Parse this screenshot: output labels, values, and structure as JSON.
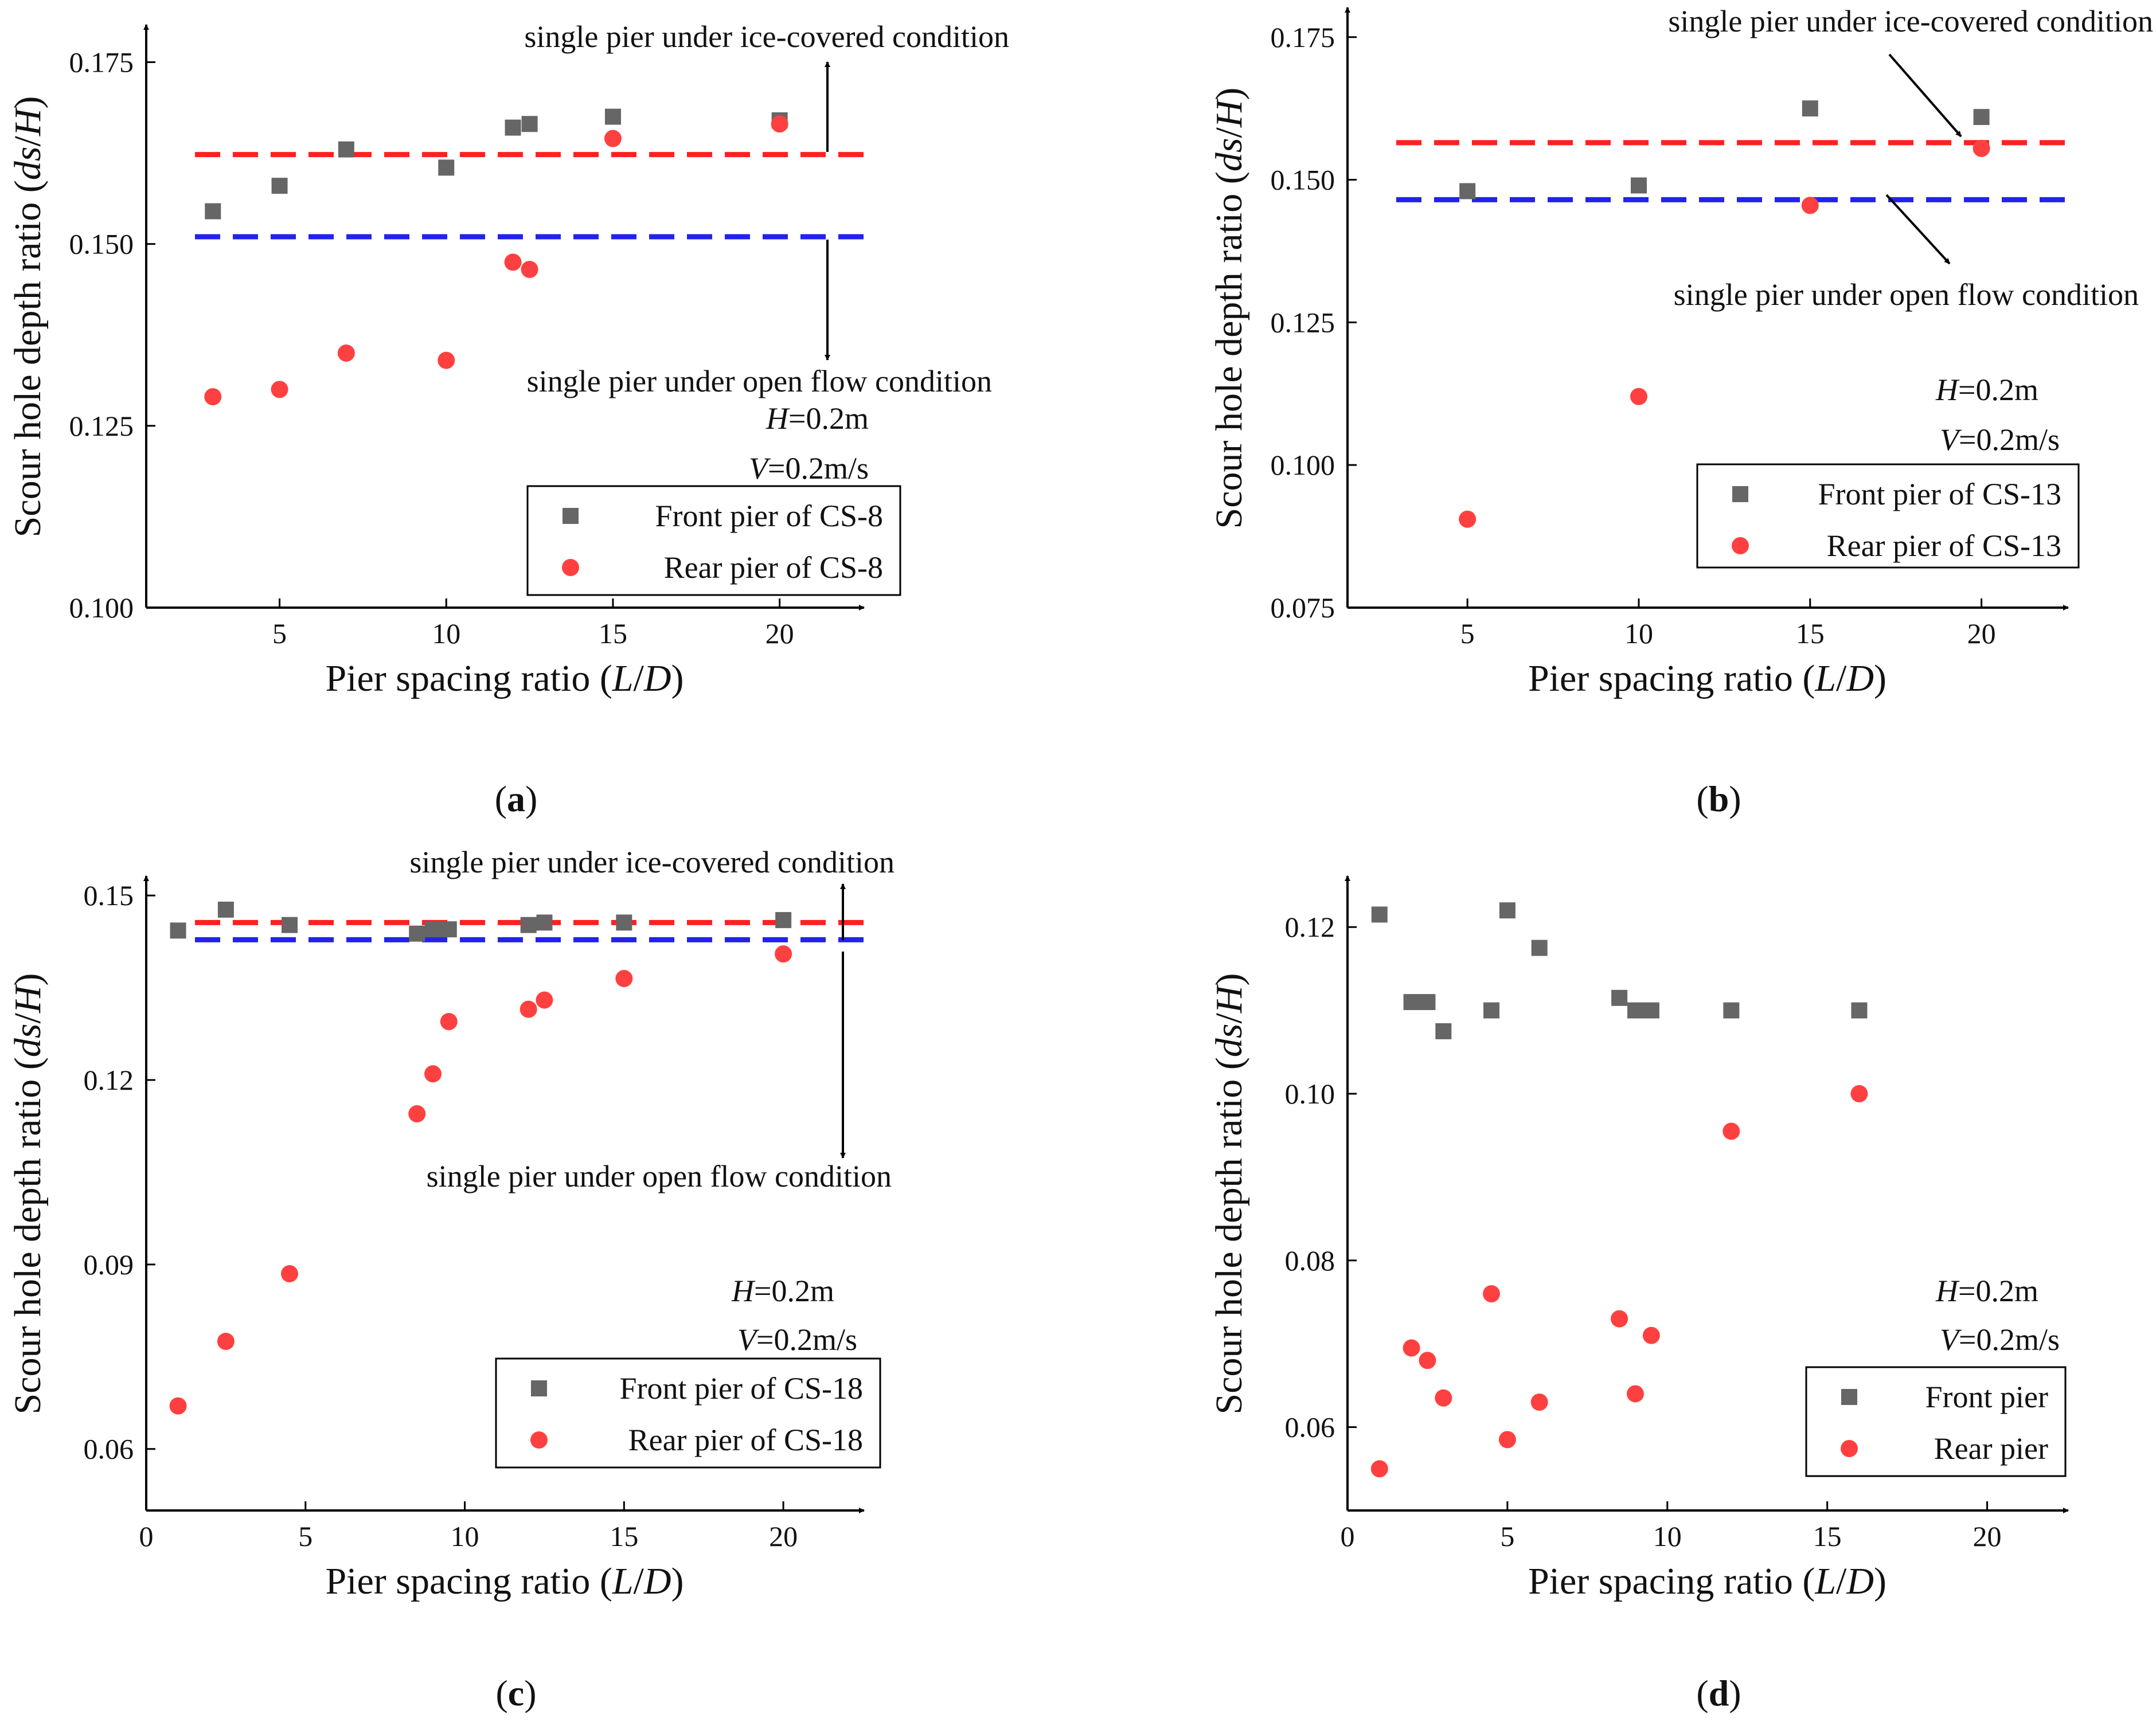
{
  "chart_data": [
    {
      "panel": "a",
      "type": "scatter",
      "caption": "(a)",
      "xlabel": "Pier spacing ratio (L/D)",
      "ylabel": "Scour hole depth ratio (ds/H)",
      "xlim": [
        1,
        22.5
      ],
      "ylim": [
        0.1,
        0.18
      ],
      "xticks": [
        5,
        10,
        15,
        20
      ],
      "yticks": [
        0.1,
        0.125,
        0.15,
        0.175
      ],
      "ytick_labels": [
        "0.100",
        "0.125",
        "0.150",
        "0.175"
      ],
      "legend_loc": "bottom-right",
      "series": [
        {
          "name": "Front pier of CS-8",
          "marker": "square",
          "color": "#666666",
          "x": [
            3,
            5,
            7,
            10,
            12,
            12.5,
            15,
            20
          ],
          "y": [
            0.1545,
            0.158,
            0.163,
            0.1605,
            0.166,
            0.1665,
            0.1675,
            0.167
          ]
        },
        {
          "name": "Rear pier of CS-8",
          "marker": "circle",
          "color": "#ff4040",
          "x": [
            3,
            5,
            7,
            10,
            12,
            12.5,
            15,
            20
          ],
          "y": [
            0.129,
            0.13,
            0.135,
            0.134,
            0.1475,
            0.1465,
            0.1645,
            0.1665
          ]
        }
      ],
      "reference_lines": [
        {
          "label": "single pier under ice-covered condition",
          "y": 0.1623,
          "color": "#ff2020"
        },
        {
          "label": "single pier under open flow condition",
          "y": 0.151,
          "color": "#2222ee"
        }
      ],
      "annotations": [
        "H=0.2m",
        "V=0.2m/s"
      ]
    },
    {
      "panel": "b",
      "type": "scatter",
      "caption": "(b)",
      "xlabel": "Pier spacing ratio (L/D)",
      "ylabel": "Scour hole depth ratio (ds/H)",
      "xlim": [
        1.5,
        22.5
      ],
      "ylim": [
        0.075,
        0.18
      ],
      "xticks": [
        5,
        10,
        15,
        20
      ],
      "yticks": [
        0.075,
        0.1,
        0.125,
        0.15,
        0.175
      ],
      "ytick_labels": [
        "0.075",
        "0.100",
        "0.125",
        "0.150",
        "0.175"
      ],
      "legend_loc": "bottom-right",
      "series": [
        {
          "name": "Front pier of CS-13",
          "marker": "square",
          "color": "#666666",
          "x": [
            5,
            10,
            15,
            20
          ],
          "y": [
            0.148,
            0.149,
            0.1625,
            0.161
          ]
        },
        {
          "name": "Rear pier of CS-13",
          "marker": "circle",
          "color": "#ff4040",
          "x": [
            5,
            10,
            15,
            20
          ],
          "y": [
            0.0905,
            0.112,
            0.1455,
            0.1555
          ]
        }
      ],
      "reference_lines": [
        {
          "label": "single pier under ice-covered condition",
          "y": 0.1565,
          "color": "#ff2020"
        },
        {
          "label": "single pier under open flow condition",
          "y": 0.1465,
          "color": "#2222ee"
        }
      ],
      "annotations": [
        "H=0.2m",
        "V=0.2m/s"
      ]
    },
    {
      "panel": "c",
      "type": "scatter",
      "caption": "(c)",
      "xlabel": "Pier spacing ratio (L/D)",
      "ylabel": "Scour hole depth ratio (ds/H)",
      "xlim": [
        0,
        22.5
      ],
      "ylim": [
        0.05,
        0.153
      ],
      "xticks": [
        0,
        5,
        10,
        15,
        20
      ],
      "yticks": [
        0.06,
        0.09,
        0.12,
        0.15
      ],
      "ytick_labels": [
        "0.06",
        "0.09",
        "0.12",
        "0.15"
      ],
      "legend_loc": "bottom-right",
      "series": [
        {
          "name": "Front pier of CS-18",
          "marker": "square",
          "color": "#666666",
          "x": [
            1,
            2.5,
            4.5,
            8.5,
            9,
            9.5,
            12,
            12.5,
            15,
            20
          ],
          "y": [
            0.1443,
            0.1477,
            0.1452,
            0.1438,
            0.1445,
            0.1445,
            0.1452,
            0.1456,
            0.1456,
            0.146
          ]
        },
        {
          "name": "Rear pier of CS-18",
          "marker": "circle",
          "color": "#ff4040",
          "x": [
            1,
            2.5,
            4.5,
            8.5,
            9,
            9.5,
            12,
            12.5,
            15,
            20
          ],
          "y": [
            0.067,
            0.0775,
            0.0885,
            0.1145,
            0.121,
            0.1295,
            0.1315,
            0.133,
            0.1365,
            0.1405
          ]
        }
      ],
      "reference_lines": [
        {
          "label": "single pier under ice-covered condition",
          "y": 0.1456,
          "color": "#ff2020"
        },
        {
          "label": "single pier under open flow condition",
          "y": 0.1428,
          "color": "#2222ee"
        }
      ],
      "annotations": [
        "H=0.2m",
        "V=0.2m/s"
      ]
    },
    {
      "panel": "d",
      "type": "scatter",
      "caption": "(d)",
      "xlabel": "Pier spacing ratio (L/D)",
      "ylabel": "Scour hole depth ratio (ds/H)",
      "xlim": [
        0,
        22.5
      ],
      "ylim": [
        0.05,
        0.126
      ],
      "xticks": [
        0,
        5,
        10,
        15,
        20
      ],
      "yticks": [
        0.06,
        0.08,
        0.1,
        0.12
      ],
      "ytick_labels": [
        "0.06",
        "0.08",
        "0.10",
        "0.12"
      ],
      "legend_loc": "bottom-right",
      "series": [
        {
          "name": "Front pier",
          "marker": "square",
          "color": "#666666",
          "x": [
            1,
            2,
            2.5,
            3,
            4.5,
            5,
            6,
            8.5,
            9,
            9.5,
            12,
            16
          ],
          "y": [
            0.1215,
            0.111,
            0.111,
            0.1075,
            0.11,
            0.122,
            0.1175,
            0.1115,
            0.11,
            0.11,
            0.11,
            0.11
          ]
        },
        {
          "name": "Rear pier",
          "marker": "circle",
          "color": "#ff4040",
          "x": [
            1,
            2,
            2.5,
            3,
            4.5,
            5,
            6,
            8.5,
            9,
            9.5,
            12,
            16
          ],
          "y": [
            0.055,
            0.0695,
            0.068,
            0.0635,
            0.076,
            0.0585,
            0.063,
            0.073,
            0.064,
            0.071,
            0.0955,
            0.1
          ]
        }
      ],
      "reference_lines": [],
      "annotations": [
        "H=0.2m",
        "V=0.2m/s"
      ]
    }
  ]
}
